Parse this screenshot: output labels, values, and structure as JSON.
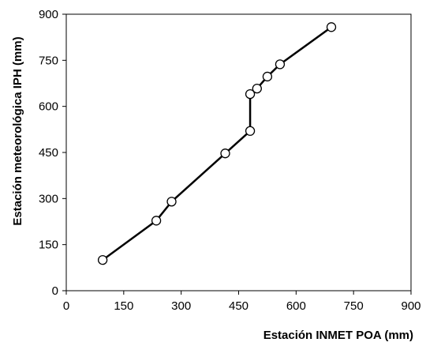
{
  "chart_data": {
    "type": "line",
    "xlabel": "Estación INMET POA (mm)",
    "ylabel": "Estación meteorológica IPH (mm)",
    "xlim": [
      0,
      900
    ],
    "ylim": [
      0,
      900
    ],
    "xticks": [
      "0",
      "150",
      "300",
      "450",
      "600",
      "750",
      "900"
    ],
    "yticks": [
      "0",
      "150",
      "300",
      "450",
      "600",
      "750",
      "900"
    ],
    "grid": false,
    "legend": "none",
    "marker": "open-circle",
    "series": [
      {
        "x": [
          95,
          235,
          275,
          415,
          480,
          480,
          498,
          525,
          558,
          692
        ],
        "y": [
          100,
          228,
          290,
          447,
          520,
          640,
          658,
          697,
          737,
          858
        ]
      }
    ],
    "colors": {
      "line": "#000000",
      "marker_fill": "#ffffff",
      "marker_stroke": "#000000"
    }
  }
}
